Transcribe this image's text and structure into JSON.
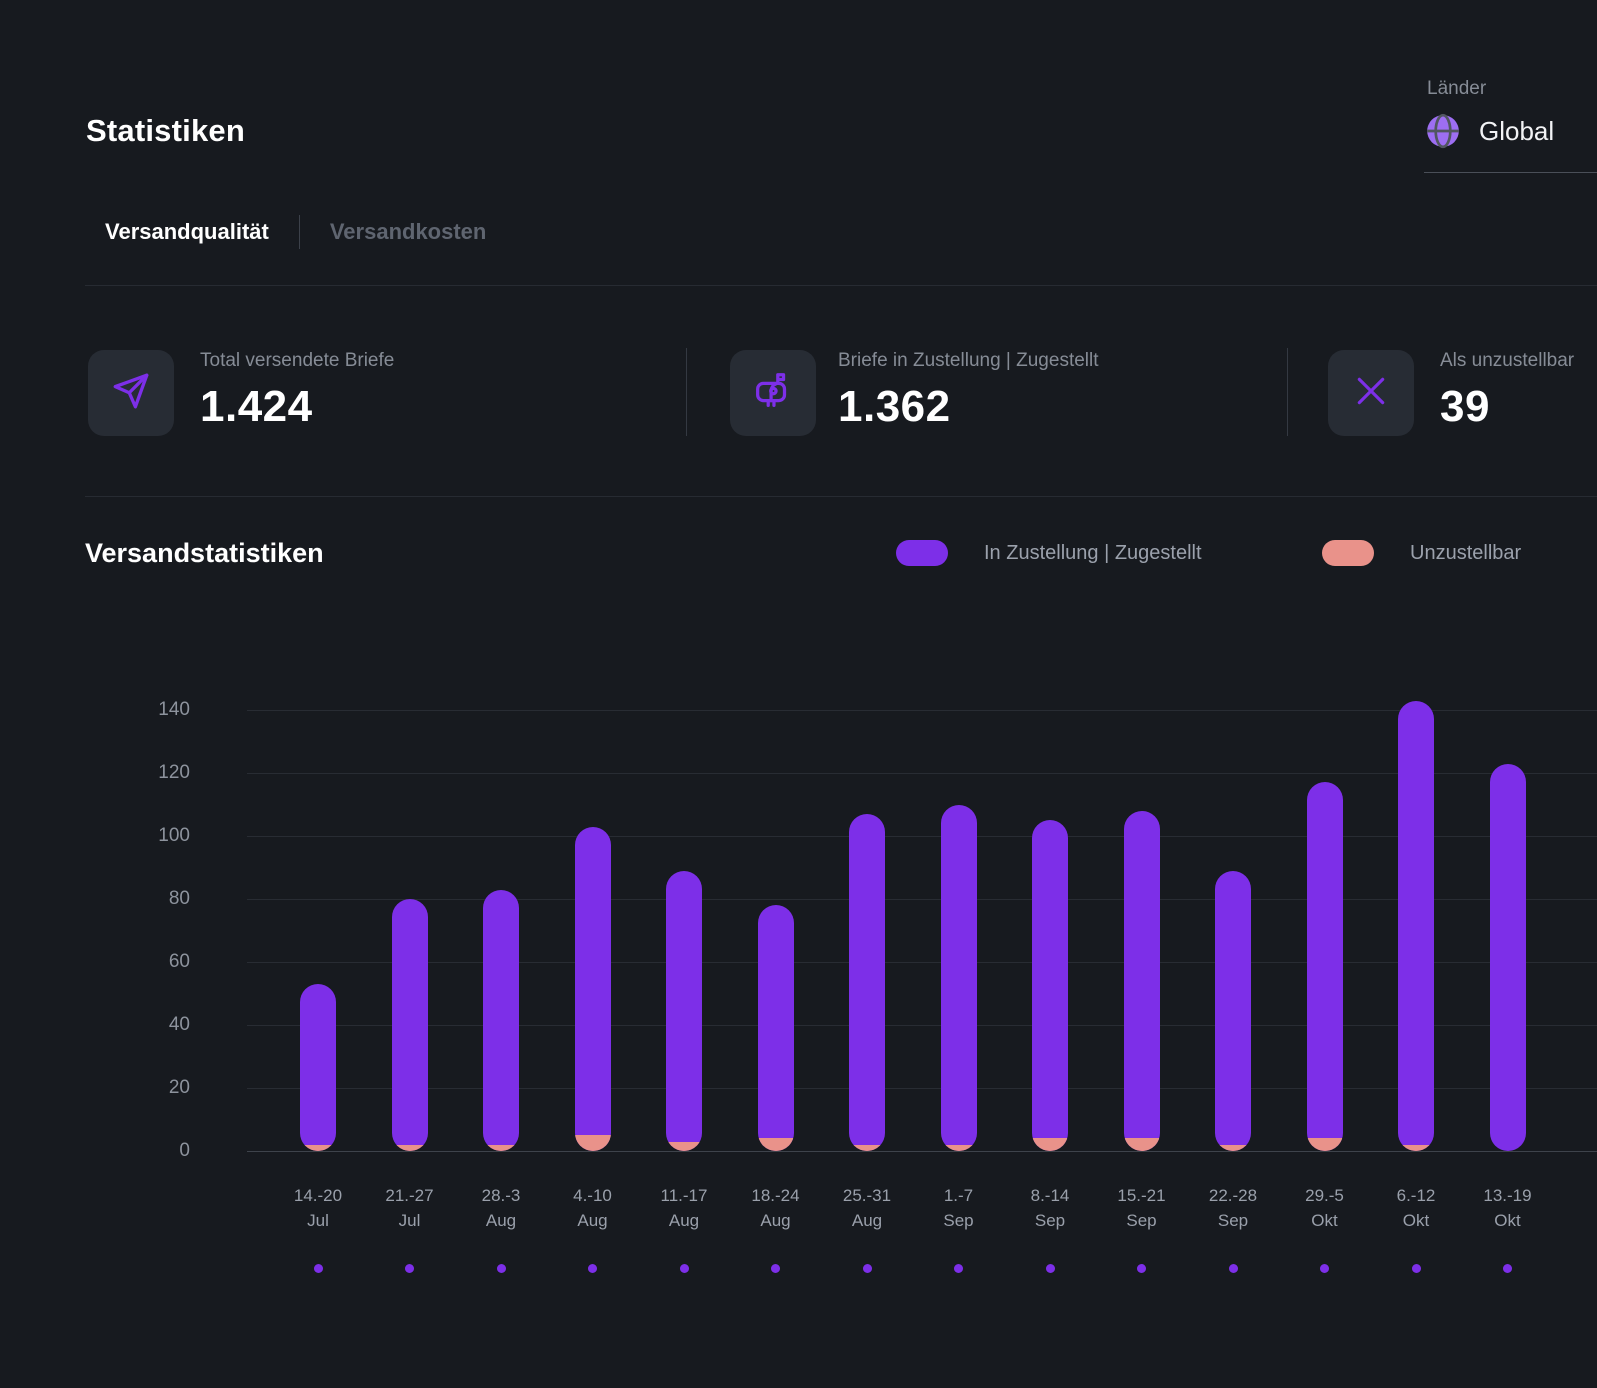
{
  "page": {
    "title": "Statistiken"
  },
  "country_selector": {
    "label": "Länder",
    "value": "Global"
  },
  "tabs": [
    {
      "label": "Versandqualität",
      "active": true
    },
    {
      "label": "Versandkosten",
      "active": false
    }
  ],
  "kpis": [
    {
      "icon": "send-icon",
      "label": "Total versendete Briefe",
      "value": "1.424"
    },
    {
      "icon": "mailbox-icon",
      "label": "Briefe in Zustellung | Zugestellt",
      "value": "1.362"
    },
    {
      "icon": "x-icon",
      "label": "Als unzustellbar",
      "value": "39"
    }
  ],
  "section": {
    "title": "Versandstatistiken"
  },
  "legend": [
    {
      "label": "In Zustellung | Zugestellt",
      "color": "#7d2fe8"
    },
    {
      "label": "Unzustellbar",
      "color": "#e9928a"
    }
  ],
  "colors": {
    "background": "#171a1f",
    "accent_purple": "#7d2fe8",
    "accent_salmon": "#e9928a",
    "text_muted": "#868c96",
    "gridline": "#282c33"
  },
  "chart_data": {
    "type": "bar",
    "stacked": true,
    "title": "Versandstatistiken",
    "xlabel": "",
    "ylabel": "",
    "ylim": [
      0,
      150
    ],
    "yticks": [
      0,
      20,
      40,
      60,
      80,
      100,
      120,
      140
    ],
    "grid": true,
    "legend_position": "top-right",
    "categories": [
      {
        "line1": "14.-20",
        "line2": "Jul"
      },
      {
        "line1": "21.-27",
        "line2": "Jul"
      },
      {
        "line1": "28.-3",
        "line2": "Aug"
      },
      {
        "line1": "4.-10",
        "line2": "Aug"
      },
      {
        "line1": "11.-17",
        "line2": "Aug"
      },
      {
        "line1": "18.-24",
        "line2": "Aug"
      },
      {
        "line1": "25.-31",
        "line2": "Aug"
      },
      {
        "line1": "1.-7",
        "line2": "Sep"
      },
      {
        "line1": "8.-14",
        "line2": "Sep"
      },
      {
        "line1": "15.-21",
        "line2": "Sep"
      },
      {
        "line1": "22.-28",
        "line2": "Sep"
      },
      {
        "line1": "29.-5",
        "line2": "Okt"
      },
      {
        "line1": "6.-12",
        "line2": "Okt"
      },
      {
        "line1": "13.-19",
        "line2": "Okt"
      }
    ],
    "series": [
      {
        "name": "Unzustellbar",
        "color": "#e9928a",
        "values": [
          2,
          2,
          2,
          5,
          3,
          4,
          2,
          2,
          4,
          4,
          2,
          4,
          2,
          0
        ]
      },
      {
        "name": "In Zustellung | Zugestellt",
        "color": "#7d2fe8",
        "values": [
          51,
          78,
          81,
          98,
          86,
          74,
          105,
          108,
          101,
          104,
          87,
          113,
          141,
          123
        ]
      }
    ]
  }
}
